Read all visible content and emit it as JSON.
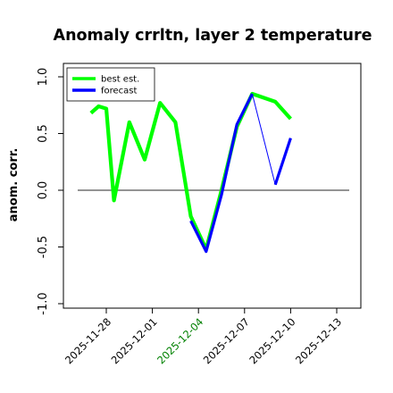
{
  "chart_data": {
    "type": "line",
    "title": "Anomaly crrltn, layer 2 temperature",
    "xlabel": "",
    "ylabel": "anom. corr.",
    "ylim": [
      -1.0,
      1.0
    ],
    "yticks": [
      "-1.0",
      "-0.5",
      "0.0",
      "0.5",
      "1.0"
    ],
    "xticks": [
      {
        "label": "2025-11-28",
        "color": "#000000"
      },
      {
        "label": "2025-12-01",
        "color": "#000000"
      },
      {
        "label": "2025-12-04",
        "color": "#008000"
      },
      {
        "label": "2025-12-07",
        "color": "#000000"
      },
      {
        "label": "2025-12-10",
        "color": "#000000"
      },
      {
        "label": "2025-12-13",
        "color": "#000000"
      }
    ],
    "x_start": "2025-11-28",
    "legend_position": "top-left",
    "zero_line": true,
    "grid": false,
    "colors": {
      "best_est": "#00ff00",
      "forecast": "#0000ff",
      "zero_line": "#555555"
    },
    "series": [
      {
        "name": "best est.",
        "color": "#00ff00",
        "segments": [
          [
            [
              "2025-11-27",
              0.68
            ],
            [
              "2025-11-27 12:00",
              0.74
            ],
            [
              "2025-11-28",
              0.72
            ],
            [
              "2025-11-28 12:00",
              -0.09
            ],
            [
              "2025-11-29 12:00",
              0.6
            ],
            [
              "2025-11-30 12:00",
              0.27
            ],
            [
              "2025-12-01 12:00",
              0.77
            ],
            [
              "2025-12-02 12:00",
              0.6
            ],
            [
              "2025-12-03 12:00",
              -0.23
            ],
            [
              "2025-12-04 12:00",
              -0.52
            ],
            [
              "2025-12-05 12:00",
              0.0
            ],
            [
              "2025-12-06 12:00",
              0.56
            ],
            [
              "2025-12-07 12:00",
              0.85
            ],
            [
              "2025-12-09",
              0.78
            ],
            [
              "2025-12-10",
              0.63
            ]
          ]
        ]
      },
      {
        "name": "forecast",
        "color": "#0000ff",
        "segments": [
          [
            [
              "2025-12-03 12:00",
              -0.27
            ],
            [
              "2025-12-04 12:00",
              -0.54
            ],
            [
              "2025-12-05 12:00",
              -0.04
            ],
            [
              "2025-12-06 12:00",
              0.58
            ],
            [
              "2025-12-07 12:00",
              0.85
            ]
          ],
          [
            [
              "2025-12-07 12:00",
              0.85
            ],
            [
              "2025-12-09",
              0.05
            ]
          ],
          [
            [
              "2025-12-09",
              0.05
            ],
            [
              "2025-12-10",
              0.46
            ]
          ]
        ]
      }
    ]
  }
}
